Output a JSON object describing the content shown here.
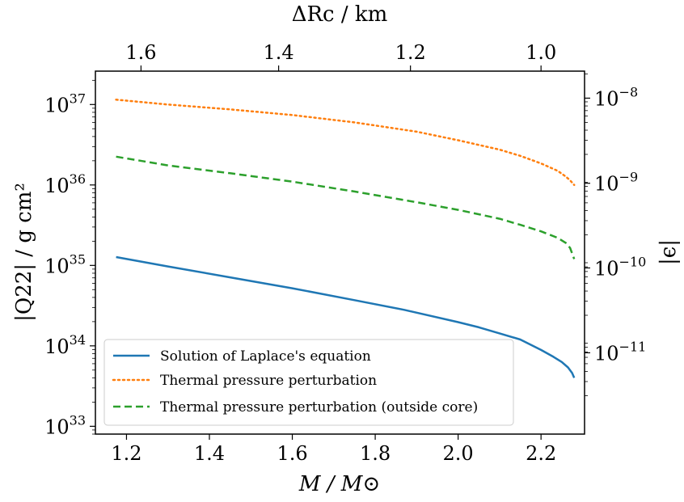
{
  "chart_data": {
    "type": "line",
    "xlabel": "M / M⊙",
    "ylabel": "|Q22| / g cm²",
    "top_xlabel": "ΔRc / km",
    "right_ylabel": "|ϵ|",
    "xlim": [
      1.125,
      2.305
    ],
    "ylim": [
      8e+32,
      2.6e+37
    ],
    "y_scale": "log",
    "x_ticks": [
      1.2,
      1.4,
      1.6,
      1.8,
      2.0,
      2.2
    ],
    "x_tick_labels": [
      "1.2",
      "1.4",
      "1.6",
      "1.8",
      "2.0",
      "2.2"
    ],
    "y_ticks": [
      1e+33,
      1e+34,
      1e+35,
      1e+36,
      1e+37
    ],
    "y_tick_labels": [
      {
        "base": "10",
        "exp": "33"
      },
      {
        "base": "10",
        "exp": "34"
      },
      {
        "base": "10",
        "exp": "35"
      },
      {
        "base": "10",
        "exp": "36"
      },
      {
        "base": "10",
        "exp": "37"
      }
    ],
    "top_x_ticks": [
      {
        "label": "1.6",
        "at_mass": 1.235
      },
      {
        "label": "1.4",
        "at_mass": 1.567
      },
      {
        "label": "1.2",
        "at_mass": 1.885
      },
      {
        "label": "1.0",
        "at_mass": 2.2
      }
    ],
    "right_y_ticks": [
      {
        "base": "10",
        "exp": "−8",
        "value": 1.2e+37
      },
      {
        "base": "10",
        "exp": "−9",
        "value": 1.05e+36
      },
      {
        "base": "10",
        "exp": "−10",
        "value": 9.3e+34
      },
      {
        "base": "10",
        "exp": "−11",
        "value": 8.2e+33
      }
    ],
    "grid": false,
    "legend": "lower-left",
    "series": [
      {
        "name": "Solution of Laplace's equation",
        "color": "#1f77b4",
        "style": "solid",
        "x": [
          1.175,
          1.3,
          1.45,
          1.6,
          1.75,
          1.87,
          2.0,
          2.05,
          2.1,
          2.15,
          2.2,
          2.23,
          2.25,
          2.265,
          2.275,
          2.28
        ],
        "y": [
          1.27e+35,
          9.7e+34,
          7.1e+34,
          5.2e+34,
          3.7e+34,
          2.8e+34,
          1.97e+34,
          1.7e+34,
          1.43e+34,
          1.2e+34,
          8.9e+33,
          7.3e+33,
          6.3e+33,
          5.4e+33,
          4.6e+33,
          4e+33
        ]
      },
      {
        "name": "Thermal pressure perturbation",
        "color": "#ff7f0e",
        "style": "dotted",
        "x": [
          1.175,
          1.3,
          1.45,
          1.6,
          1.75,
          1.9,
          2.0,
          2.1,
          2.15,
          2.2,
          2.24,
          2.26,
          2.27,
          2.28
        ],
        "y": [
          1.15e+37,
          1e+37,
          8.7e+36,
          7.4e+36,
          6e+36,
          4.6e+36,
          3.6e+36,
          2.75e+36,
          2.3e+36,
          1.85e+36,
          1.5e+36,
          1.27e+36,
          1.14e+36,
          1e+36
        ]
      },
      {
        "name": "Thermal pressure perturbation (outside core)",
        "color": "#2ca02c",
        "style": "dashed",
        "x": [
          1.175,
          1.3,
          1.45,
          1.6,
          1.75,
          1.9,
          2.0,
          2.1,
          2.15,
          2.2,
          2.24,
          2.26,
          2.27,
          2.28
        ],
        "y": [
          2.25e+36,
          1.75e+36,
          1.4e+36,
          1.1e+36,
          8.3e+35,
          6.1e+35,
          4.9e+35,
          3.8e+35,
          3.2e+35,
          2.65e+35,
          2.2e+35,
          1.9e+35,
          1.65e+35,
          1.2e+35
        ]
      }
    ]
  }
}
